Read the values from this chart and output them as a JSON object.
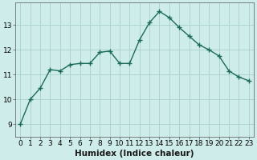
{
  "x": [
    0,
    1,
    2,
    3,
    4,
    5,
    6,
    7,
    8,
    9,
    10,
    11,
    12,
    13,
    14,
    15,
    16,
    17,
    18,
    19,
    20,
    21,
    22,
    23
  ],
  "y": [
    9.0,
    10.0,
    10.45,
    11.2,
    11.15,
    11.4,
    11.45,
    11.45,
    11.9,
    11.95,
    11.45,
    11.45,
    12.4,
    13.1,
    13.55,
    13.3,
    12.9,
    12.55,
    12.2,
    12.0,
    11.75,
    11.15,
    10.9,
    10.75
  ],
  "line_color": "#1b6b5a",
  "marker": "+",
  "marker_size": 4,
  "bg_color": "#ceecea",
  "grid_color": "#aed4d0",
  "xlabel": "Humidex (Indice chaleur)",
  "ylim": [
    8.5,
    13.9
  ],
  "xlim": [
    -0.5,
    23.5
  ],
  "yticks": [
    9,
    10,
    11,
    12,
    13
  ],
  "xticks": [
    0,
    1,
    2,
    3,
    4,
    5,
    6,
    7,
    8,
    9,
    10,
    11,
    12,
    13,
    14,
    15,
    16,
    17,
    18,
    19,
    20,
    21,
    22,
    23
  ],
  "tick_fontsize": 6.5,
  "xlabel_fontsize": 7.5,
  "linewidth": 1.0,
  "marker_linewidth": 1.0
}
